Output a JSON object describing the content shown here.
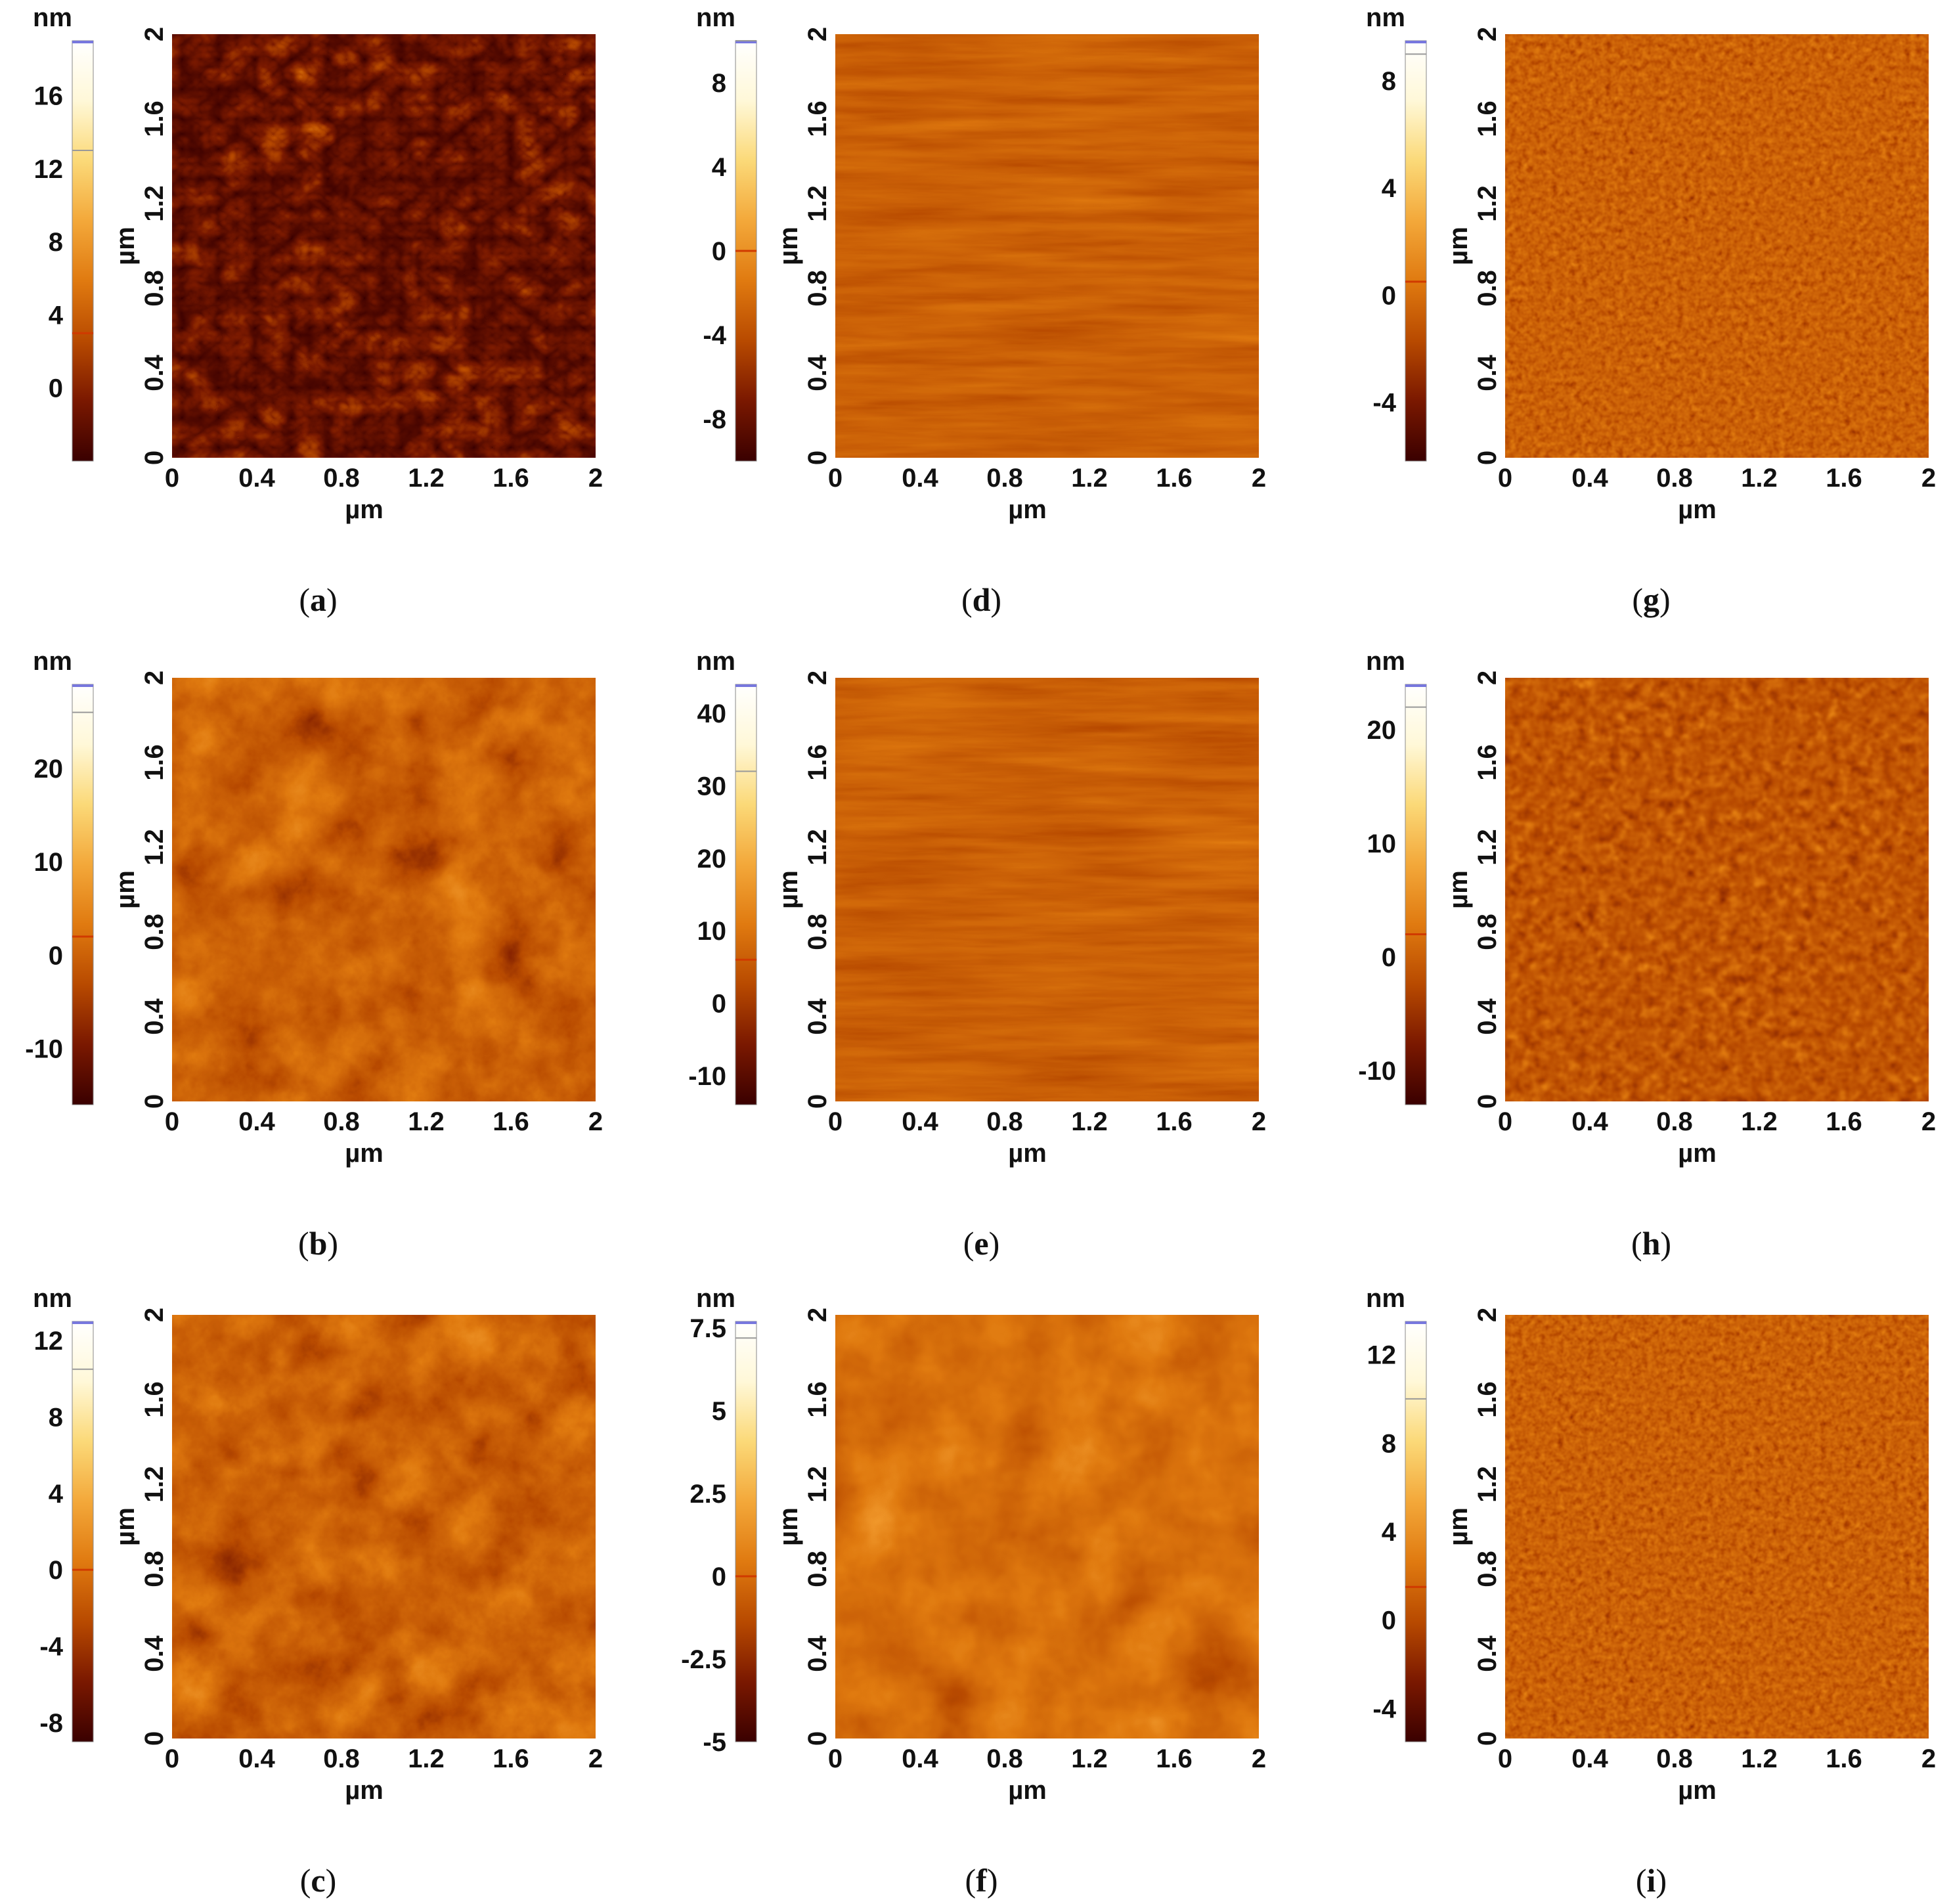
{
  "figure": {
    "x_unit": "µm",
    "y_unit": "µm",
    "height_unit": "nm",
    "axis_ticks": [
      "0",
      "0.4",
      "0.8",
      "1.2",
      "1.6",
      "2"
    ],
    "colors": {
      "colormap": [
        "#3a0000",
        "#7a1800",
        "#b84a00",
        "#e07a10",
        "#f3a83a",
        "#fbd978",
        "#fff8d8",
        "#ffffff"
      ],
      "frame": "#7777dd"
    }
  },
  "panels": [
    {
      "id": "a",
      "caption": "a",
      "texture": "network",
      "colorbar": {
        "min": -4,
        "max": 19,
        "marker": 3,
        "top_mark": 13,
        "ticks": [
          "16",
          "12",
          "8",
          "4",
          "0"
        ],
        "tick_values": [
          16,
          12,
          8,
          4,
          0
        ]
      }
    },
    {
      "id": "b",
      "caption": "b",
      "texture": "mottled",
      "colorbar": {
        "min": -16,
        "max": 29,
        "marker": 2,
        "top_mark": 26,
        "ticks": [
          "20",
          "10",
          "0",
          "-10"
        ],
        "tick_values": [
          20,
          10,
          0,
          -10
        ]
      }
    },
    {
      "id": "c",
      "caption": "c",
      "texture": "mottled",
      "colorbar": {
        "min": -9,
        "max": 13,
        "marker": 0,
        "top_mark": 10.5,
        "ticks": [
          "12",
          "8",
          "4",
          "0",
          "-4",
          "-8"
        ],
        "tick_values": [
          12,
          8,
          4,
          0,
          -4,
          -8
        ]
      }
    },
    {
      "id": "d",
      "caption": "d",
      "texture": "lines",
      "colorbar": {
        "min": -10,
        "max": 10,
        "marker": 0,
        "top_mark": 10,
        "ticks": [
          "8",
          "4",
          "0",
          "-4",
          "-8"
        ],
        "tick_values": [
          8,
          4,
          0,
          -4,
          -8
        ]
      }
    },
    {
      "id": "e",
      "caption": "e",
      "texture": "lines",
      "colorbar": {
        "min": -14,
        "max": 44,
        "marker": 6,
        "top_mark": 32,
        "ticks": [
          "40",
          "30",
          "20",
          "10",
          "0",
          "-10"
        ],
        "tick_values": [
          40,
          30,
          20,
          10,
          0,
          -10
        ]
      }
    },
    {
      "id": "f",
      "caption": "f",
      "texture": "spots",
      "colorbar": {
        "min": -5,
        "max": 7.7,
        "marker": 0,
        "top_mark": 7.2,
        "ticks": [
          "7.5",
          "5",
          "2.5",
          "0",
          "-2.5",
          "-5"
        ],
        "tick_values": [
          7.5,
          5,
          2.5,
          0,
          -2.5,
          -5
        ]
      }
    },
    {
      "id": "g",
      "caption": "g",
      "texture": "grains",
      "colorbar": {
        "min": -6.2,
        "max": 9.5,
        "marker": 0.5,
        "top_mark": 9,
        "ticks": [
          "8",
          "4",
          "0",
          "-4"
        ],
        "tick_values": [
          8,
          4,
          0,
          -4
        ]
      }
    },
    {
      "id": "h",
      "caption": "h",
      "texture": "grains-large",
      "colorbar": {
        "min": -13,
        "max": 24,
        "marker": 2,
        "top_mark": 22,
        "ticks": [
          "20",
          "10",
          "0",
          "-10"
        ],
        "tick_values": [
          20,
          10,
          0,
          -10
        ]
      }
    },
    {
      "id": "i",
      "caption": "i",
      "texture": "grains",
      "colorbar": {
        "min": -5.5,
        "max": 13.5,
        "marker": 1.5,
        "top_mark": 10,
        "ticks": [
          "12",
          "8",
          "4",
          "0",
          "-4"
        ],
        "tick_values": [
          12,
          8,
          4,
          0,
          -4
        ]
      }
    }
  ]
}
